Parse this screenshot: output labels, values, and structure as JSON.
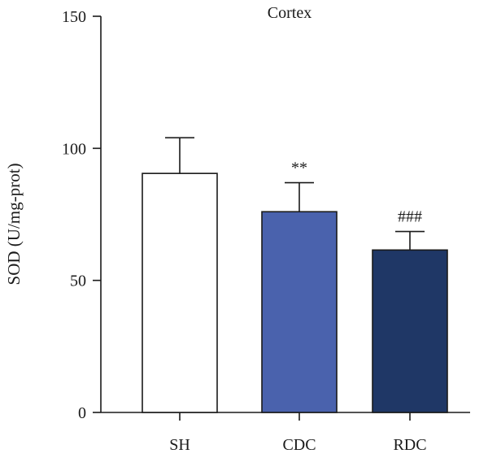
{
  "chart_data": {
    "type": "bar",
    "title": "Cortex",
    "xlabel": "",
    "ylabel": "SOD (U/mg-prot)",
    "ylim": [
      0,
      150
    ],
    "yticks": [
      0,
      50,
      100,
      150
    ],
    "categories": [
      "SH",
      "CDC",
      "RDC"
    ],
    "values": [
      90.5,
      76,
      61.5
    ],
    "errors": [
      13.5,
      11,
      7
    ],
    "annotations": [
      "",
      "**",
      "###"
    ],
    "colors": [
      "#ffffff",
      "#4a62ad",
      "#1f3766"
    ],
    "grid": false,
    "legend": "none"
  }
}
